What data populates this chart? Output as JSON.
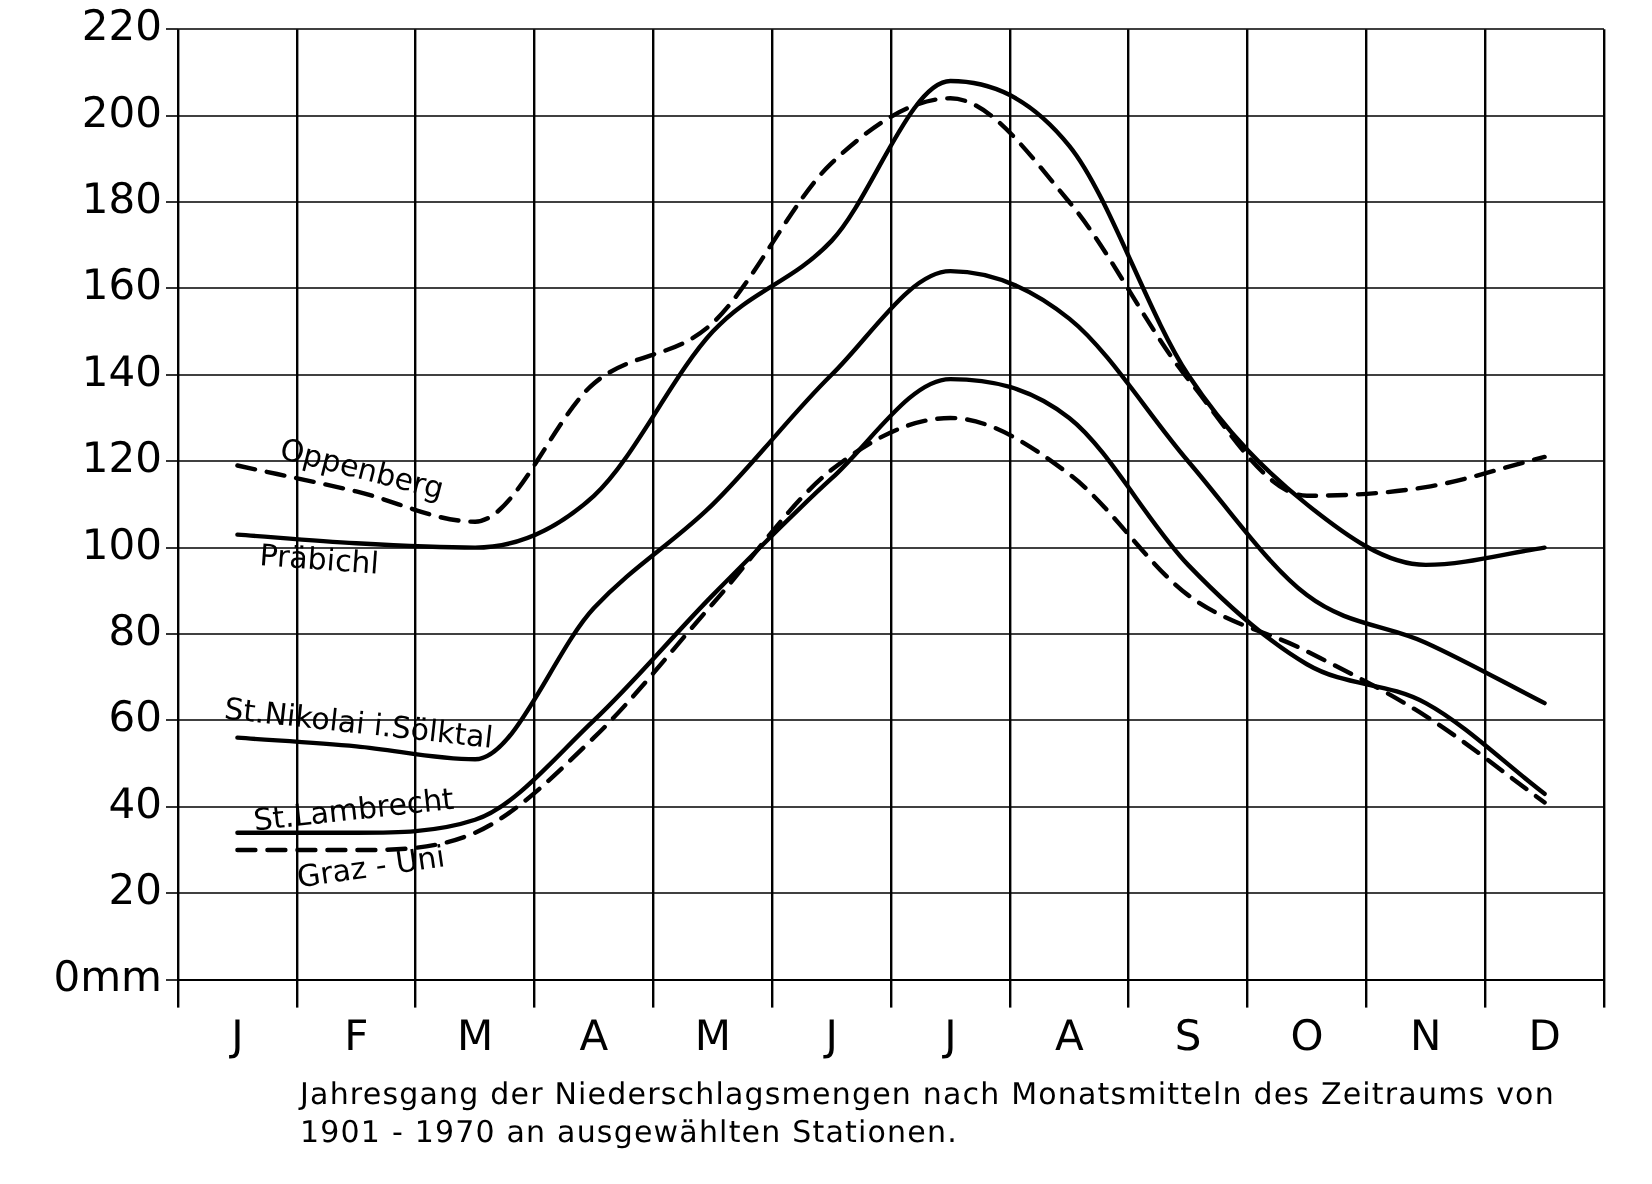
{
  "chart_data": {
    "type": "line",
    "categories": [
      "J",
      "F",
      "M",
      "A",
      "M",
      "J",
      "J",
      "A",
      "S",
      "O",
      "N",
      "D"
    ],
    "ylim": [
      0,
      220
    ],
    "yticks": [
      {
        "value": 0,
        "label": "0mm"
      },
      20,
      40,
      60,
      80,
      100,
      120,
      140,
      160,
      180,
      200,
      220
    ],
    "grid": true,
    "legend": false,
    "marker": "none",
    "series": [
      {
        "name": "Oppenberg",
        "color": "#000000",
        "line_style": "dashed",
        "values": [
          119,
          113,
          106,
          138,
          152,
          189,
          204,
          180,
          139,
          112,
          114,
          121
        ]
      },
      {
        "name": "Präbichl",
        "color": "#000000",
        "line_style": "solid",
        "values": [
          103,
          101,
          100,
          112,
          150,
          171,
          208,
          193,
          140,
          110,
          96,
          100
        ]
      },
      {
        "name": "St.Nikolai i.Sölktal",
        "color": "#000000",
        "line_style": "solid",
        "values": [
          56,
          54,
          51,
          86,
          110,
          140,
          164,
          153,
          120,
          89,
          78,
          64
        ]
      },
      {
        "name": "St.Lambrecht",
        "color": "#000000",
        "line_style": "solid",
        "values": [
          34,
          34,
          37,
          60,
          89,
          116,
          139,
          130,
          96,
          73,
          64,
          43
        ]
      },
      {
        "name": "Graz - Uni",
        "color": "#000000",
        "line_style": "dashed",
        "values": [
          30,
          30,
          34,
          56,
          87,
          118,
          130,
          117,
          89,
          76,
          61,
          41
        ]
      }
    ],
    "annotations": [
      "Jahresgang der Niederschlagsmengen nach Monatsmitteln des Zeitraums von 1901 - 1970 an ausgewählten Stationen."
    ]
  }
}
